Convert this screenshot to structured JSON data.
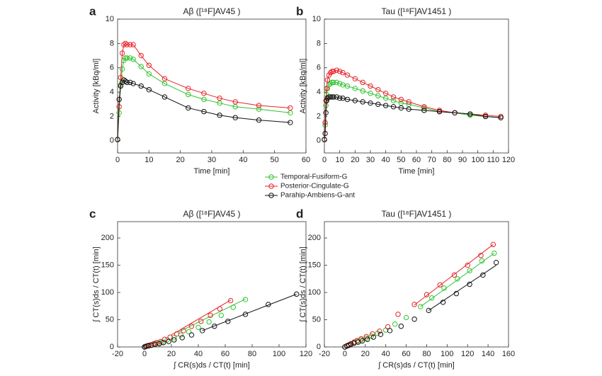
{
  "chart_data": [
    {
      "type": "line",
      "panel": "a",
      "title": "Aβ ([¹⁸F]AV45 )",
      "xlabel": "Time [min]",
      "ylabel": "Activity [kBq/ml]",
      "x": [
        0,
        0.5,
        1,
        1.5,
        2,
        2.5,
        3,
        4,
        5,
        7.5,
        10,
        15,
        22.5,
        27.5,
        32.5,
        37.5,
        45,
        55
      ],
      "series": [
        {
          "color": "#2fc42f",
          "values": [
            0.1,
            2.3,
            4.6,
            5.9,
            6.6,
            6.8,
            6.8,
            6.8,
            6.7,
            6.1,
            5.5,
            4.7,
            3.8,
            3.4,
            3.1,
            2.8,
            2.6,
            2.3
          ]
        },
        {
          "color": "#e8232a",
          "values": [
            0.1,
            2.8,
            5.2,
            7.2,
            7.9,
            8.0,
            7.9,
            7.9,
            7.9,
            7.0,
            6.2,
            5.1,
            4.3,
            3.9,
            3.5,
            3.2,
            2.9,
            2.7
          ]
        },
        {
          "color": "#111111",
          "values": [
            0.1,
            3.4,
            4.5,
            4.8,
            5.0,
            4.9,
            4.8,
            4.8,
            4.7,
            4.5,
            4.2,
            3.6,
            2.7,
            2.4,
            2.1,
            1.9,
            1.7,
            1.5
          ]
        }
      ],
      "xlim": [
        0,
        60
      ],
      "xticks": [
        0,
        10,
        20,
        30,
        40,
        50,
        60
      ],
      "ylim": [
        -1,
        10
      ],
      "yticks": [
        0,
        2,
        4,
        6,
        8,
        10
      ]
    },
    {
      "type": "line",
      "panel": "b",
      "title": "Tau ([¹⁸F]AV1451 )",
      "xlabel": "Time [min]",
      "ylabel": "Activity [kBq/ml]",
      "x": [
        0,
        0.5,
        1,
        1.5,
        2,
        3,
        4,
        5,
        6,
        8,
        10,
        12,
        15,
        20,
        25,
        30,
        35,
        40,
        45,
        50,
        55,
        65,
        75,
        85,
        95,
        105,
        115
      ],
      "series": [
        {
          "color": "#2fc42f",
          "values": [
            0.1,
            1.3,
            2.9,
            3.8,
            4.3,
            4.6,
            4.7,
            4.8,
            4.8,
            4.8,
            4.7,
            4.6,
            4.5,
            4.3,
            4.1,
            3.9,
            3.7,
            3.5,
            3.3,
            3.1,
            3.0,
            2.7,
            2.4,
            2.3,
            2.1,
            2.0,
            1.9
          ]
        },
        {
          "color": "#e8232a",
          "values": [
            0.1,
            1.5,
            3.3,
            4.3,
            5.0,
            5.4,
            5.6,
            5.7,
            5.7,
            5.8,
            5.7,
            5.6,
            5.4,
            5.1,
            4.8,
            4.5,
            4.2,
            3.9,
            3.6,
            3.4,
            3.2,
            2.8,
            2.5,
            2.3,
            2.2,
            2.1,
            2.0
          ]
        },
        {
          "color": "#111111",
          "values": [
            0.1,
            0.6,
            2.3,
            3.3,
            3.5,
            3.6,
            3.6,
            3.6,
            3.6,
            3.6,
            3.5,
            3.5,
            3.4,
            3.3,
            3.2,
            3.1,
            3.0,
            2.9,
            2.8,
            2.7,
            2.6,
            2.5,
            2.4,
            2.3,
            2.2,
            2.0,
            1.9
          ]
        }
      ],
      "xlim": [
        0,
        120
      ],
      "xticks": [
        0,
        10,
        20,
        30,
        40,
        50,
        60,
        70,
        80,
        90,
        100,
        110,
        120
      ],
      "ylim": [
        -1,
        10
      ],
      "yticks": [
        0,
        2,
        4,
        6,
        8,
        10
      ]
    },
    {
      "type": "scatter",
      "panel": "c",
      "title": "Aβ ([¹⁸F]AV45 )",
      "xlabel": "∫ CR(s)ds / CT(t) [min]",
      "ylabel": "∫ CT(s)ds / CT(t) [min]",
      "series": [
        {
          "color": "#2fc42f",
          "x": [
            0,
            1,
            2,
            3,
            5,
            7,
            10,
            13,
            17,
            22,
            27,
            33,
            40,
            48,
            57,
            66,
            75
          ],
          "values": [
            0,
            1,
            2,
            3,
            4,
            5,
            7,
            9,
            13,
            17,
            22,
            28,
            36,
            46,
            58,
            73,
            87
          ],
          "fit_x": [
            25,
            75
          ],
          "fit_y": [
            27,
            88
          ]
        },
        {
          "color": "#e8232a",
          "x": [
            0,
            1,
            2,
            3,
            5,
            7,
            9,
            12,
            15,
            19,
            24,
            29,
            35,
            42,
            49,
            56,
            64
          ],
          "values": [
            0,
            1,
            2,
            3,
            4,
            6,
            8,
            10,
            14,
            18,
            24,
            30,
            38,
            47,
            58,
            70,
            85
          ],
          "fit_x": [
            20,
            64
          ],
          "fit_y": [
            22,
            86
          ]
        },
        {
          "color": "#111111",
          "x": [
            0,
            1,
            3,
            5,
            8,
            11,
            14,
            18,
            22,
            28,
            35,
            43,
            52,
            62,
            75,
            92,
            113
          ],
          "values": [
            0,
            1,
            2,
            3,
            5,
            6,
            8,
            10,
            13,
            17,
            22,
            30,
            38,
            47,
            60,
            78,
            97
          ],
          "fit_x": [
            43,
            113
          ],
          "fit_y": [
            30,
            97
          ]
        }
      ],
      "xlim": [
        -20,
        120
      ],
      "xticks": [
        -20,
        0,
        20,
        40,
        60,
        80,
        100,
        120
      ],
      "ylim": [
        0,
        230
      ],
      "yticks": [
        0,
        50,
        100,
        150,
        200
      ]
    },
    {
      "type": "scatter",
      "panel": "d",
      "title": "Tau ([¹⁸F]AV1451 )",
      "xlabel": "∫ CR(s)ds / CT(t) [min]",
      "ylabel": "∫ CT(s)ds / CT(t) [min]",
      "series": [
        {
          "color": "#2fc42f",
          "x": [
            0,
            2,
            4,
            6,
            9,
            12,
            16,
            21,
            26,
            32,
            40,
            49,
            60,
            74,
            85,
            97,
            110,
            122,
            134,
            146
          ],
          "values": [
            0,
            2,
            3,
            5,
            8,
            10,
            13,
            16,
            20,
            25,
            31,
            42,
            54,
            74,
            90,
            108,
            125,
            140,
            158,
            172
          ],
          "fit_x": [
            74,
            146
          ],
          "fit_y": [
            74,
            172
          ]
        },
        {
          "color": "#e8232a",
          "x": [
            0,
            2,
            4,
            6,
            9,
            12,
            16,
            21,
            27,
            34,
            42,
            52,
            68,
            80,
            93,
            107,
            120,
            133,
            145
          ],
          "values": [
            0,
            2,
            4,
            6,
            9,
            12,
            15,
            19,
            24,
            29,
            37,
            60,
            78,
            96,
            114,
            132,
            150,
            168,
            188
          ],
          "fit_x": [
            68,
            145
          ],
          "fit_y": [
            77,
            188
          ]
        },
        {
          "color": "#111111",
          "x": [
            0,
            2,
            4,
            6,
            9,
            13,
            17,
            22,
            28,
            35,
            44,
            55,
            68,
            82,
            96,
            109,
            122,
            135,
            148
          ],
          "values": [
            0,
            2,
            3,
            5,
            7,
            9,
            11,
            14,
            18,
            23,
            30,
            38,
            51,
            67,
            82,
            98,
            115,
            132,
            155
          ],
          "fit_x": [
            82,
            148
          ],
          "fit_y": [
            67,
            150
          ]
        }
      ],
      "xlim": [
        -20,
        160
      ],
      "xticks": [
        -20,
        0,
        20,
        40,
        60,
        80,
        100,
        120,
        140,
        160
      ],
      "ylim": [
        0,
        230
      ],
      "yticks": [
        0,
        50,
        100,
        150,
        200
      ]
    }
  ],
  "legend": {
    "entries": [
      "Temporal-Fusiform-G",
      "Posterior-Cingulate-G",
      "Parahip-Ambiens-G-ant"
    ]
  }
}
